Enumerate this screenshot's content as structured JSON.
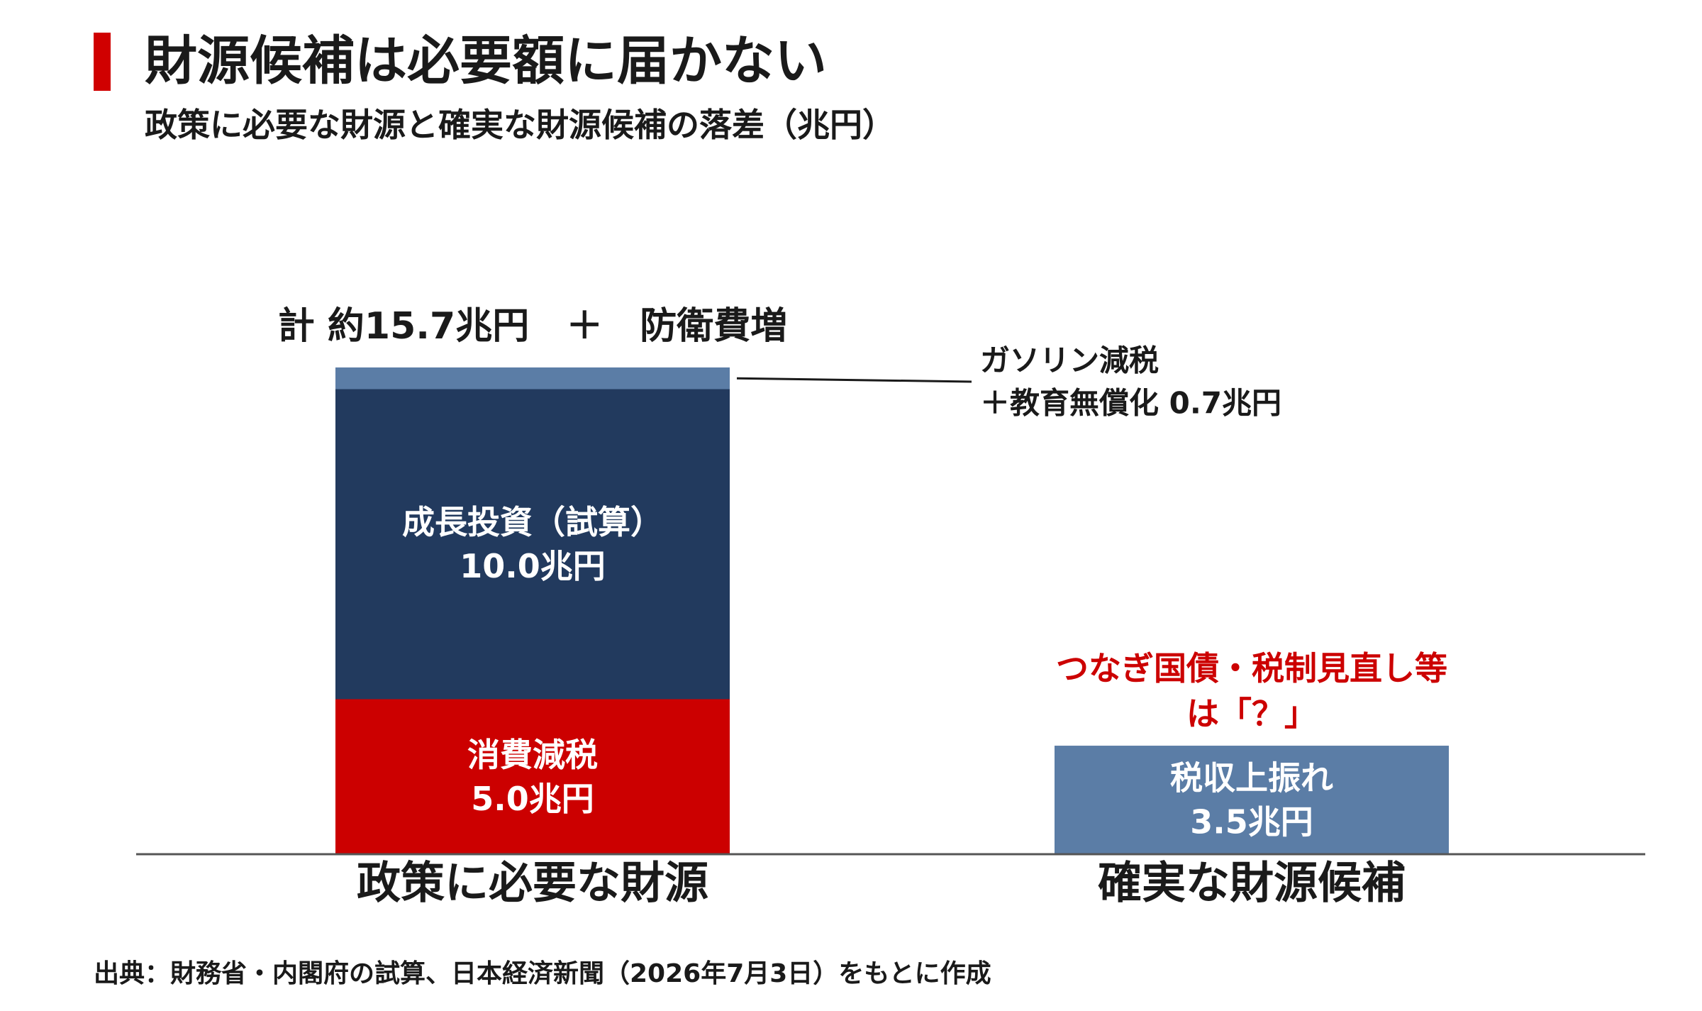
{
  "title": "財源候補は必要額に届かない",
  "subtitle": "政策に必要な財源と確実な財源候補の落差（兆円）",
  "source": "出典：財務省・内閣府の試算、日本経済新聞（2026年7月3日）をもとに作成",
  "colors": {
    "accent": "#d00000",
    "navy": "#223a5e",
    "steel_blue": "#5b7da6",
    "red": "#cc0000",
    "annotation_red": "#cc0000",
    "axis": "#555555",
    "text": "#1a1a1a"
  },
  "chart_data": {
    "type": "bar",
    "stacked": true,
    "unit": "兆円",
    "categories": [
      "政策に必要な財源",
      "確実な財源候補"
    ],
    "total_label": "計 約15.7兆円　＋　防衛費増",
    "ylim": [
      0,
      15.7
    ],
    "grid": false,
    "series": [
      {
        "category": "政策に必要な財源",
        "segments": [
          {
            "value": 5.0,
            "label_lines": [
              "消費減税",
              "5.0兆円"
            ],
            "color": "#cc0000"
          },
          {
            "value": 10.0,
            "label_lines": [
              "成長投資（試算）",
              "10.0兆円"
            ],
            "color": "#223a5e"
          },
          {
            "value": 0.7,
            "label_lines": [],
            "color": "#5b7da6",
            "callout_lines": [
              "ガソリン減税",
              "＋教育無償化 0.7兆円"
            ]
          }
        ]
      },
      {
        "category": "確実な財源候補",
        "segments": [
          {
            "value": 3.5,
            "label_lines": [
              "税収上振れ",
              "3.5兆円"
            ],
            "color": "#5b7da6"
          }
        ],
        "annotation_lines": [
          "つなぎ国債・税制見直し等",
          "は「？」"
        ]
      }
    ]
  }
}
